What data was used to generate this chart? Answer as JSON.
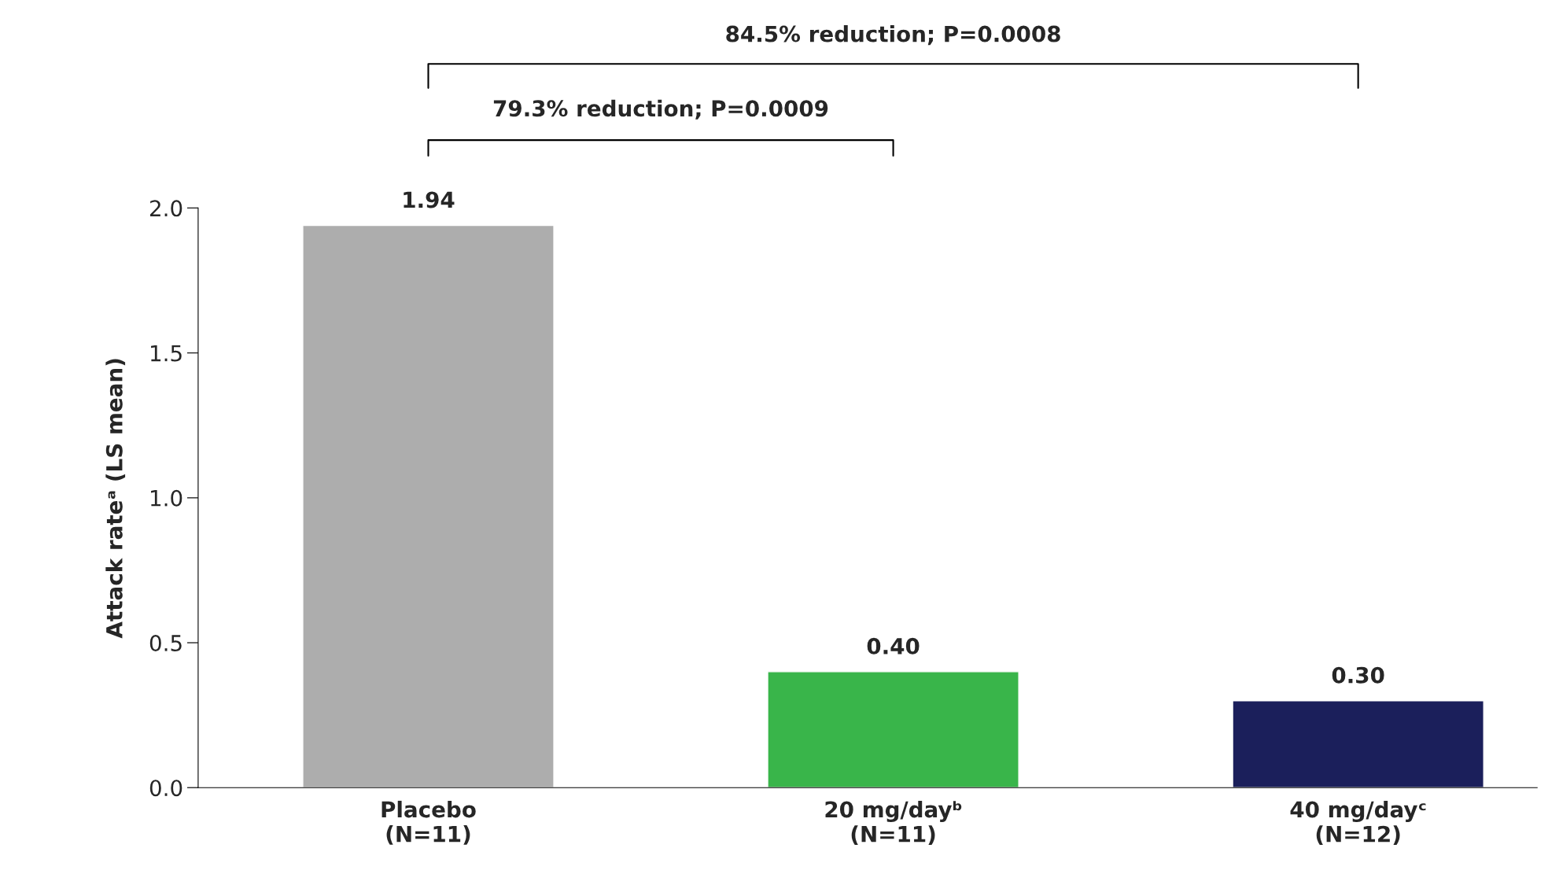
{
  "chart_data": {
    "type": "bar",
    "categories": [
      "Placebo\n(N=11)",
      "20 mg/dayᵇ\n(N=11)",
      "40 mg/dayᶜ\n(N=12)"
    ],
    "values": [
      1.94,
      0.4,
      0.3
    ],
    "colors": [
      "#adadad",
      "#39b54a",
      "#1b1f5b"
    ],
    "ylabel": "Attack rateᵃ (LS mean)",
    "ylim": [
      0,
      2.0
    ],
    "yticks": [
      {
        "value": 0,
        "label": "0.0"
      },
      {
        "value": 0.5,
        "label": "0.5"
      },
      {
        "value": 1.0,
        "label": "1.0"
      },
      {
        "value": 1.5,
        "label": "1.5"
      },
      {
        "value": 2.0,
        "label": "2.0"
      }
    ],
    "value_labels": [
      "1.94",
      "0.40",
      "0.30"
    ],
    "grid": false,
    "legend": false,
    "annotations": [
      "79.3% reduction; P=0.0009",
      "84.5% reduction; P=0.0008"
    ]
  }
}
